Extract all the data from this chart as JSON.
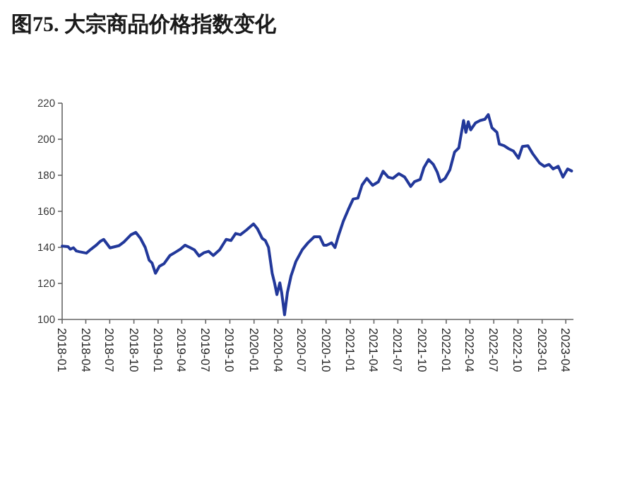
{
  "chart_data": {
    "type": "line",
    "title": "图75. 大宗商品价格指数变化",
    "xlim": [
      "2018-01-01",
      "2023-04-30"
    ],
    "xticks": [
      "2018-01",
      "2018-04",
      "2018-07",
      "2018-10",
      "2019-01",
      "2019-04",
      "2019-07",
      "2019-10",
      "2020-01",
      "2020-04",
      "2020-07",
      "2020-10",
      "2021-01",
      "2021-04",
      "2021-07",
      "2021-10",
      "2022-01",
      "2022-04",
      "2022-07",
      "2022-10",
      "2023-01",
      "2023-04"
    ],
    "ylim": [
      100,
      220
    ],
    "yticks": [
      100,
      120,
      140,
      160,
      180,
      200,
      220
    ],
    "grid": false,
    "marker": "none",
    "line_style": "solid",
    "series": [
      {
        "color": "#22389a",
        "x": [
          "2018-01-01",
          "2018-01-23",
          "2018-02-01",
          "2018-02-13",
          "2018-02-24",
          "2018-03-07",
          "2018-04-03",
          "2018-04-21",
          "2018-05-09",
          "2018-05-26",
          "2018-06-08",
          "2018-07-02",
          "2018-08-06",
          "2018-08-24",
          "2018-09-20",
          "2018-10-08",
          "2018-10-26",
          "2018-11-13",
          "2018-11-28",
          "2018-12-09",
          "2018-12-22",
          "2019-01-06",
          "2019-01-24",
          "2019-02-15",
          "2019-03-08",
          "2019-03-27",
          "2019-04-13",
          "2019-05-01",
          "2019-05-19",
          "2019-06-06",
          "2019-06-24",
          "2019-07-12",
          "2019-07-30",
          "2019-08-23",
          "2019-09-17",
          "2019-10-05",
          "2019-10-23",
          "2019-11-10",
          "2019-12-03",
          "2019-12-30",
          "2020-01-14",
          "2020-02-01",
          "2020-02-13",
          "2020-02-25",
          "2020-03-10",
          "2020-03-19",
          "2020-03-28",
          "2020-04-08",
          "2020-04-15",
          "2020-04-26",
          "2020-05-07",
          "2020-05-21",
          "2020-06-08",
          "2020-07-02",
          "2020-07-24",
          "2020-08-17",
          "2020-09-07",
          "2020-09-22",
          "2020-10-03",
          "2020-10-22",
          "2020-11-04",
          "2020-11-17",
          "2020-12-05",
          "2020-12-24",
          "2021-01-12",
          "2021-01-30",
          "2021-02-15",
          "2021-03-05",
          "2021-03-27",
          "2021-04-18",
          "2021-05-06",
          "2021-05-25",
          "2021-06-12",
          "2021-07-05",
          "2021-07-27",
          "2021-08-19",
          "2021-09-02",
          "2021-09-24",
          "2021-10-08",
          "2021-10-26",
          "2021-11-13",
          "2021-11-28",
          "2021-12-10",
          "2021-12-28",
          "2022-01-15",
          "2022-02-02",
          "2022-02-18",
          "2022-03-08",
          "2022-03-17",
          "2022-03-26",
          "2022-04-04",
          "2022-04-22",
          "2022-05-10",
          "2022-05-28",
          "2022-06-10",
          "2022-06-24",
          "2022-07-13",
          "2022-07-22",
          "2022-08-09",
          "2022-08-27",
          "2022-09-14",
          "2022-10-03",
          "2022-10-18",
          "2022-11-08",
          "2022-11-26",
          "2022-12-22",
          "2023-01-09",
          "2023-01-27",
          "2023-02-12",
          "2023-03-03",
          "2023-03-21",
          "2023-04-08",
          "2023-04-23"
        ],
        "values": [
          140.7,
          140.4,
          139,
          139.8,
          138,
          137.6,
          136.8,
          139,
          141,
          143.3,
          144.4,
          139.7,
          141,
          143,
          147,
          148.3,
          145,
          140,
          132.9,
          131.3,
          125.6,
          129.5,
          131,
          135.5,
          137.3,
          139,
          141.2,
          140,
          138.6,
          135.2,
          137,
          137.8,
          135.5,
          138.6,
          144.4,
          143.8,
          147.7,
          147,
          149.6,
          153,
          150.3,
          145,
          143.8,
          140,
          125.6,
          120.3,
          113.8,
          120.3,
          115,
          102.6,
          115,
          124.3,
          132.1,
          138.6,
          142.5,
          145.9,
          145.9,
          141.2,
          141.2,
          142.5,
          139.9,
          146.4,
          154.3,
          160.8,
          166.8,
          167.3,
          174.6,
          178.3,
          174.4,
          176.4,
          182.2,
          179,
          178.3,
          180.9,
          179,
          173.8,
          176.4,
          177.7,
          184.2,
          188.7,
          186,
          181.7,
          176.4,
          178.3,
          183,
          192.9,
          195.2,
          210.4,
          203.8,
          209.7,
          205.2,
          209,
          210.4,
          211.1,
          213.7,
          206.4,
          203.8,
          197.3,
          196.4,
          194.7,
          193.4,
          189.5,
          196,
          196.4,
          192,
          186.8,
          185,
          186,
          183.5,
          185,
          179,
          183.5,
          182.4
        ]
      }
    ]
  }
}
